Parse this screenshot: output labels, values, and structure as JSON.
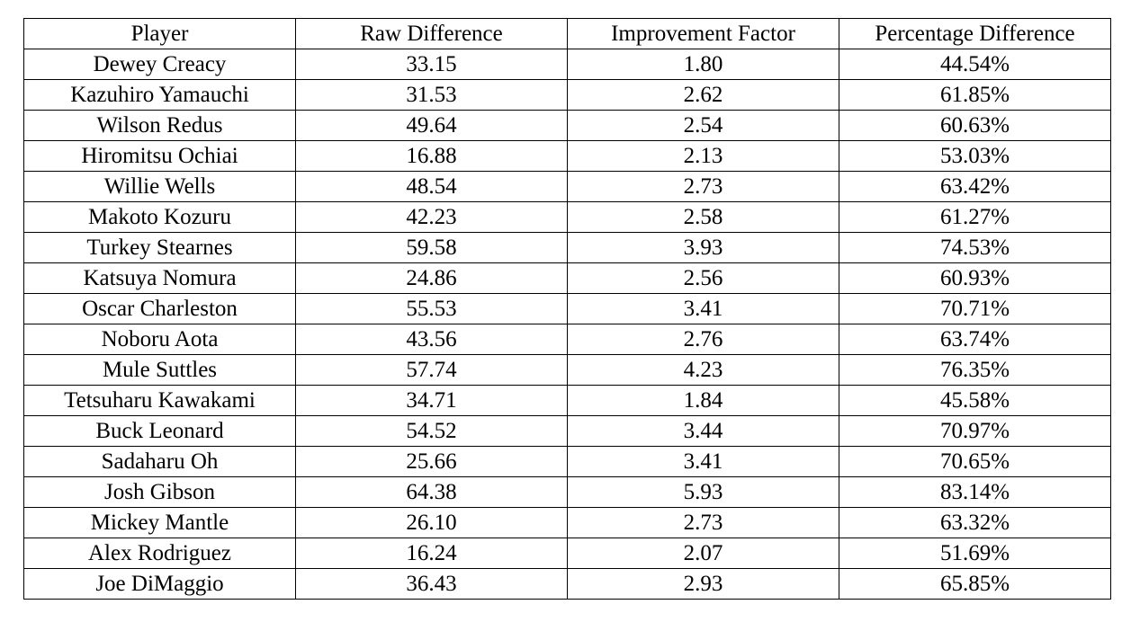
{
  "table": {
    "columns": [
      "Player",
      "Raw Difference",
      "Improvement Factor",
      "Percentage Difference"
    ],
    "rows": [
      [
        "Dewey Creacy",
        "33.15",
        "1.80",
        "44.54%"
      ],
      [
        "Kazuhiro Yamauchi",
        "31.53",
        "2.62",
        "61.85%"
      ],
      [
        "Wilson Redus",
        "49.64",
        "2.54",
        "60.63%"
      ],
      [
        "Hiromitsu Ochiai",
        "16.88",
        "2.13",
        "53.03%"
      ],
      [
        "Willie Wells",
        "48.54",
        "2.73",
        "63.42%"
      ],
      [
        "Makoto Kozuru",
        "42.23",
        "2.58",
        "61.27%"
      ],
      [
        "Turkey Stearnes",
        "59.58",
        "3.93",
        "74.53%"
      ],
      [
        "Katsuya Nomura",
        "24.86",
        "2.56",
        "60.93%"
      ],
      [
        "Oscar Charleston",
        "55.53",
        "3.41",
        "70.71%"
      ],
      [
        "Noboru Aota",
        "43.56",
        "2.76",
        "63.74%"
      ],
      [
        "Mule Suttles",
        "57.74",
        "4.23",
        "76.35%"
      ],
      [
        "Tetsuharu Kawakami",
        "34.71",
        "1.84",
        "45.58%"
      ],
      [
        "Buck Leonard",
        "54.52",
        "3.44",
        "70.97%"
      ],
      [
        "Sadaharu Oh",
        "25.66",
        "3.41",
        "70.65%"
      ],
      [
        "Josh Gibson",
        "64.38",
        "5.93",
        "83.14%"
      ],
      [
        "Mickey Mantle",
        "26.10",
        "2.73",
        "63.32%"
      ],
      [
        "Alex Rodriguez",
        "16.24",
        "2.07",
        "51.69%"
      ],
      [
        "Joe DiMaggio",
        "36.43",
        "2.93",
        "65.85%"
      ]
    ]
  }
}
